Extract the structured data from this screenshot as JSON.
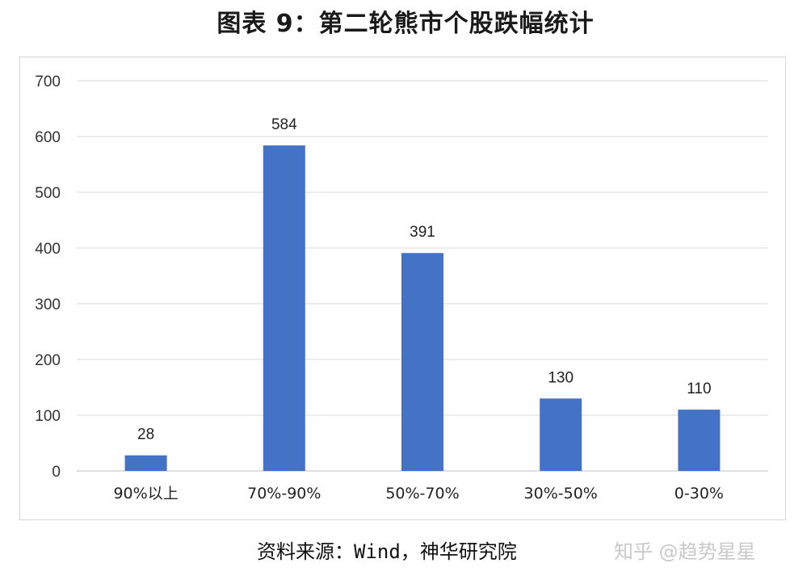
{
  "title": "图表 9：第二轮熊市个股跌幅统计",
  "source": "资料来源：Wind，神华研究院",
  "watermark": "知乎 @趋势星星",
  "colors": {
    "bar": "#4472C4",
    "grid": "#d9d9d9"
  },
  "chart_data": {
    "type": "bar",
    "categories": [
      "90%以上",
      "70%-90%",
      "50%-70%",
      "30%-50%",
      "0-30%"
    ],
    "values": [
      28,
      584,
      391,
      130,
      110
    ],
    "title": "图表 9：第二轮熊市个股跌幅统计",
    "xlabel": "",
    "ylabel": "",
    "ylim": [
      0,
      700
    ],
    "yticks": [
      0,
      100,
      200,
      300,
      400,
      500,
      600,
      700
    ],
    "grid": true,
    "data_labels": true
  }
}
